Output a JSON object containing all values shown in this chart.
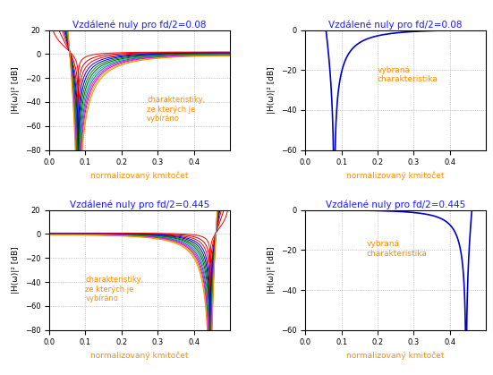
{
  "title_top_left": "Vzdálené nuly pro fd/2=0.08",
  "title_top_right": "Vzdálené nuly pro fd/2=0.08",
  "title_bot_left": "Vzdálené nuly pro fd/2=0.445",
  "title_bot_right": "Vzdálené nuly pro fd/2=0.445",
  "xlabel": "normalizovaný kmitočet",
  "ylabel": "|H(ω)|² [dB]",
  "annotation_multi": "charakteristiky,\nze kterých je\nvybíráno",
  "annotation_single": "vybraná\ncharakteristika",
  "annotation_color": "#FF8C00",
  "title_color": "#1a1aff",
  "axis_label_color": "#FF8C00",
  "fd_08": 0.08,
  "fd_445": 0.445,
  "background_color": "#ffffff",
  "multi_colors": [
    "#FF0000",
    "#CC0000",
    "#FF0000",
    "#0000FF",
    "#000099",
    "#007700",
    "#005500",
    "#00AAAA",
    "#007777",
    "#FF00FF",
    "#CC00CC",
    "#BBBB00",
    "#FF8800",
    "#333333"
  ],
  "selected_color": "#0000CC",
  "grid_color": "#888888",
  "tick_label_color": "#000000"
}
